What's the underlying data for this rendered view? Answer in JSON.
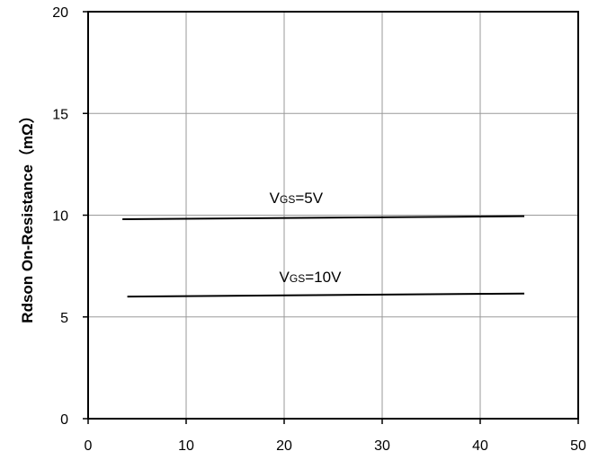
{
  "chart_data": {
    "type": "line",
    "title": "",
    "xlabel": "",
    "ylabel": "Rdson On-Resistance（mΩ）",
    "xlim": [
      0,
      50
    ],
    "ylim": [
      0,
      20
    ],
    "x_ticks": [
      "0",
      "10",
      "20",
      "30",
      "40",
      "50"
    ],
    "y_ticks": [
      "0",
      "5",
      "10",
      "15",
      "20"
    ],
    "grid": true,
    "series": [
      {
        "x": [
          3.5,
          44.5
        ],
        "y": [
          9.8,
          9.95
        ]
      },
      {
        "x": [
          4,
          44.5
        ],
        "y": [
          6.0,
          6.15
        ]
      }
    ],
    "annotations": [
      {
        "main": "V",
        "sub": "GS",
        "rest": "=5V",
        "x": 18.5,
        "y": 10.6
      },
      {
        "main": "V",
        "sub": "GS",
        "rest": "=10V",
        "x": 19.5,
        "y": 6.7
      }
    ]
  }
}
